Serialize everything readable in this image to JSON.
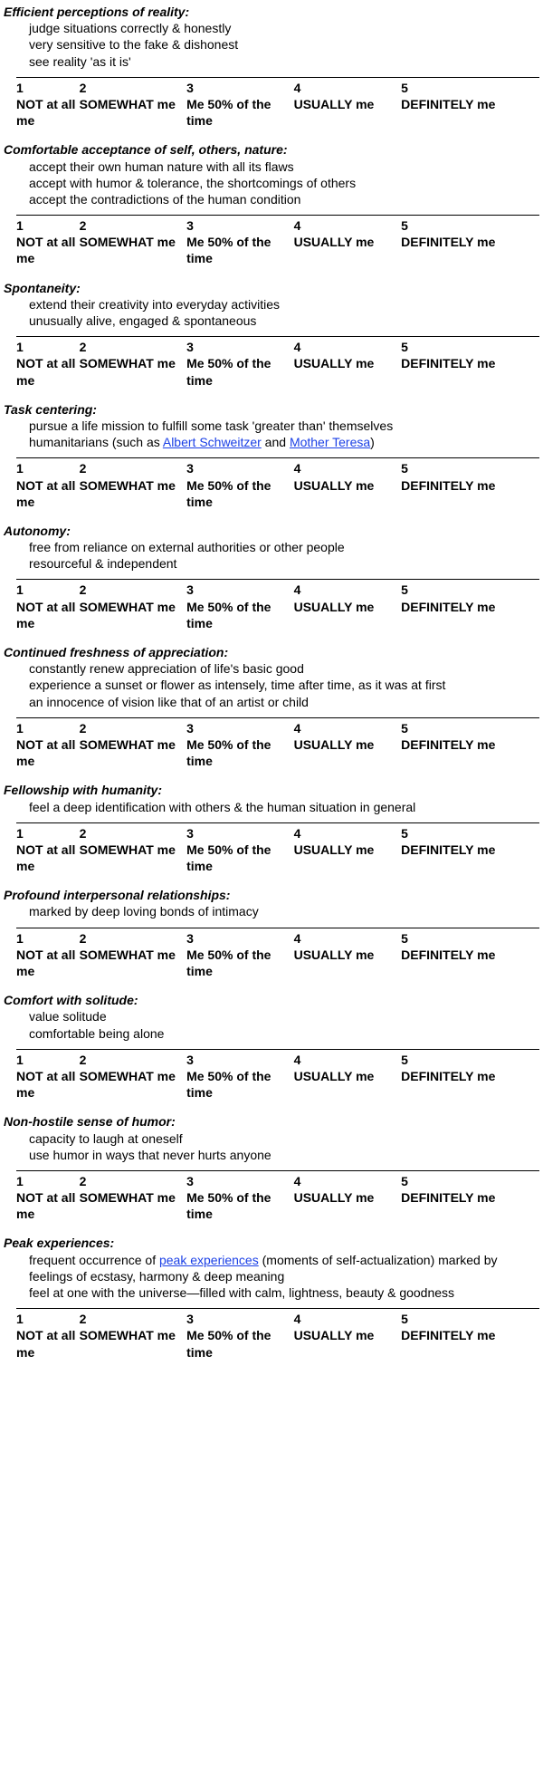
{
  "scale": {
    "options": [
      {
        "num": "1",
        "label": "NOT at all me"
      },
      {
        "num": "2",
        "label": "SOMEWHAT me"
      },
      {
        "num": "3",
        "label": "Me 50% of the time"
      },
      {
        "num": "4",
        "label": "USUALLY me"
      },
      {
        "num": "5",
        "label": "DEFINITELY me"
      }
    ]
  },
  "sections": [
    {
      "title": "Efficient perceptions of reality:",
      "lines": [
        "judge situations correctly & honestly",
        "very sensitive to the fake & dishonest",
        "see reality 'as it is'"
      ]
    },
    {
      "title": "Comfortable acceptance of self, others, nature:",
      "lines": [
        "accept their own human nature with all its flaws",
        "accept with humor & tolerance, the shortcomings of others",
        "accept the contradictions of the human condition"
      ]
    },
    {
      "title": "Spontaneity:",
      "lines": [
        "extend their creativity into everyday activities",
        "unusually alive, engaged & spontaneous"
      ]
    },
    {
      "title": "Task centering:",
      "lines": [
        "pursue a life mission to fulfill some task 'greater than' themselves",
        {
          "type": "rich",
          "parts": [
            {
              "t": "humanitarians (such as "
            },
            {
              "t": "Albert Schweitzer",
              "link": true
            },
            {
              "t": " and "
            },
            {
              "t": "Mother Teresa",
              "link": true
            },
            {
              "t": ")"
            }
          ]
        }
      ]
    },
    {
      "title": "Autonomy:",
      "lines": [
        "free from reliance on external authorities or other people",
        "resourceful & independent"
      ]
    },
    {
      "title": "Continued freshness of appreciation:",
      "lines": [
        "constantly renew appreciation of life's basic good",
        "experience a sunset or flower as intensely, time after time, as it was at first",
        "an innocence of vision like that of an artist or child"
      ]
    },
    {
      "title": "Fellowship with humanity:",
      "lines": [
        "feel a deep identification with others & the human situation in general"
      ]
    },
    {
      "title": "Profound interpersonal relationships:",
      "lines": [
        "marked by deep loving bonds of intimacy"
      ]
    },
    {
      "title": "Comfort with solitude:",
      "lines": [
        "value solitude",
        "comfortable being alone"
      ]
    },
    {
      "title": "Non-hostile sense of humor:",
      "lines": [
        "capacity to laugh at oneself",
        "use humor in ways that never hurts anyone"
      ]
    },
    {
      "title": "Peak experiences:",
      "lines": [
        {
          "type": "rich",
          "parts": [
            {
              "t": "frequent occurrence of "
            },
            {
              "t": "peak experiences",
              "link": true
            },
            {
              "t": " (moments of self-actualization) marked by"
            }
          ]
        },
        "feelings of ecstasy, harmony & deep meaning",
        "feel at one with the universe—filled with calm, lightness, beauty & goodness"
      ]
    }
  ]
}
